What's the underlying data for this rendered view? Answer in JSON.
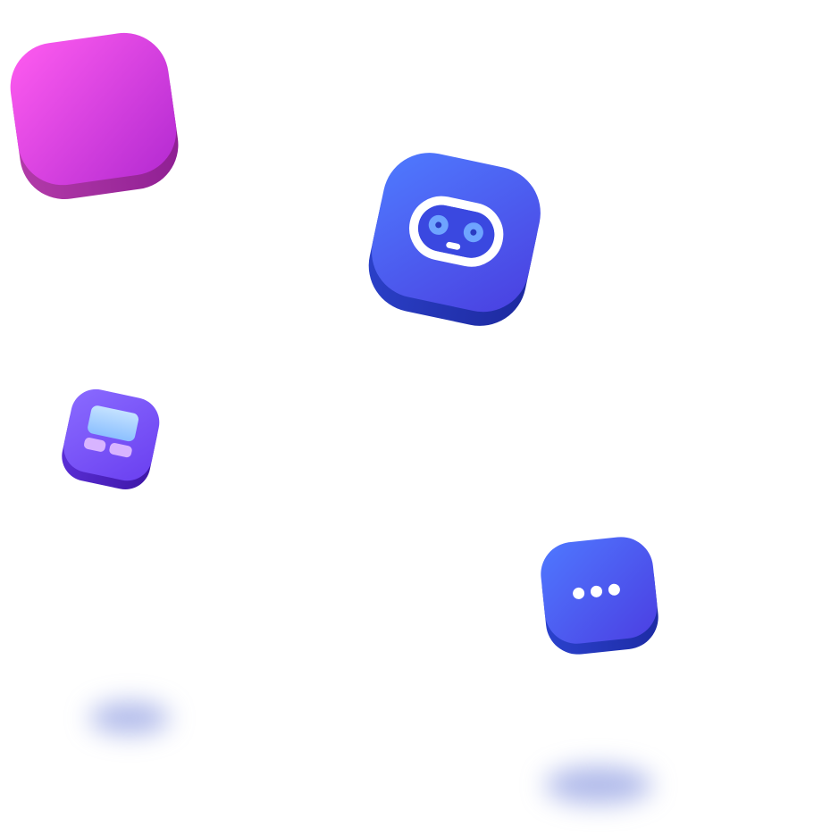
{
  "scene": {
    "background": "#ffffff",
    "tiles": [
      {
        "name": "analytics-tile",
        "icon": "bar-chart-icon",
        "top_color": "#e24be6",
        "side_color": "#a62a9f",
        "glyph_colors": [
          "#f6c86a",
          "#f5a6ee"
        ]
      },
      {
        "name": "robot-tile",
        "icon": "robot-face-icon",
        "top_color": "#4b5cf0",
        "side_color": "#2433b0",
        "glyph_colors": [
          "#ffffff",
          "#6fa2ff"
        ]
      },
      {
        "name": "layout-tile",
        "icon": "layout-grid-icon",
        "top_color": "#7a5cf5",
        "side_color": "#4f2ac9",
        "glyph_colors": [
          "#a9d6ff",
          "#d7b6ff"
        ]
      },
      {
        "name": "chat-tile",
        "icon": "more-dots-icon",
        "top_color": "#4d5cf0",
        "side_color": "#2637b6",
        "glyph_colors": [
          "#ffffff"
        ]
      }
    ],
    "shadow_color": "#6e7fd8"
  }
}
